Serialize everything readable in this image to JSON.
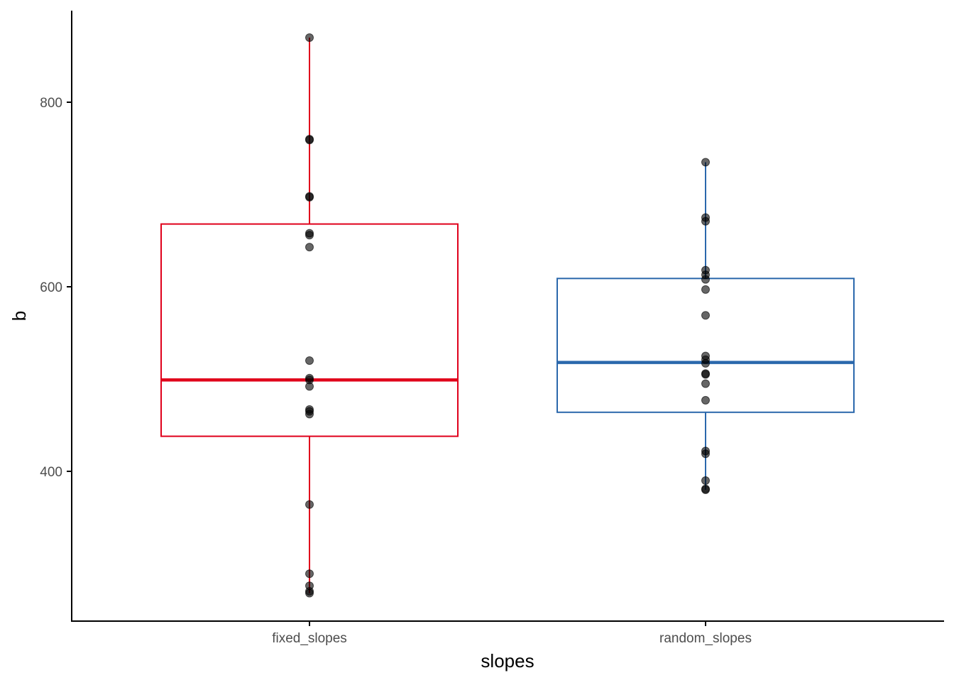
{
  "chart_data": {
    "type": "boxplot",
    "title": "",
    "xlabel": "slopes",
    "ylabel": "b",
    "ylim": [
      236,
      897
    ],
    "yticks": [
      400,
      600,
      800
    ],
    "ytick_labels": [
      "400",
      "600",
      "800"
    ],
    "grid": false,
    "categories": [
      "fixed_slopes",
      "random_slopes"
    ],
    "colors": [
      "#E0001B",
      "#2B68AC"
    ],
    "point_color": "#000000",
    "boxes": [
      {
        "category": "fixed_slopes",
        "whisker_low": 268,
        "q1": 438,
        "median": 499,
        "q3": 668,
        "whisker_high": 870,
        "points": [
          870,
          760,
          759,
          698,
          697,
          658,
          656,
          643,
          520,
          501,
          499,
          492,
          467,
          465,
          462,
          364,
          289,
          276,
          270,
          268
        ]
      },
      {
        "category": "random_slopes",
        "whisker_low": 380,
        "q1": 464,
        "median": 518,
        "q3": 609,
        "whisker_high": 735,
        "points": [
          735,
          675,
          671,
          618,
          613,
          608,
          597,
          569,
          525,
          521,
          517,
          506,
          505,
          495,
          477,
          422,
          419,
          390,
          381,
          380
        ]
      }
    ]
  }
}
